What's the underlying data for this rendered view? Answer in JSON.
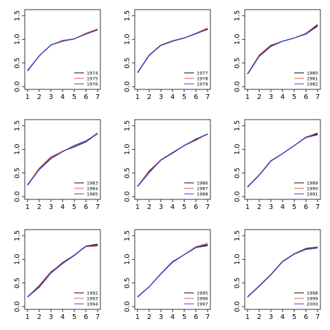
{
  "colors": {
    "black": "#000000",
    "red": "#d95f3b",
    "blue": "#2b3fd6"
  },
  "chart_data": [
    {
      "type": "line",
      "x": [
        1,
        2,
        3,
        4,
        5,
        6,
        7
      ],
      "ylim": [
        0,
        1.6
      ],
      "series": [
        {
          "name": "1974",
          "color": "#000000",
          "values": [
            0.34,
            0.65,
            0.88,
            0.97,
            1.01,
            1.12,
            1.21
          ]
        },
        {
          "name": "1975",
          "color": "#d95f3b",
          "values": [
            0.33,
            0.65,
            0.88,
            0.98,
            1.01,
            1.13,
            1.22
          ]
        },
        {
          "name": "1976",
          "color": "#2b3fd6",
          "values": [
            0.33,
            0.65,
            0.88,
            0.96,
            1.01,
            1.11,
            1.2
          ]
        }
      ]
    },
    {
      "type": "line",
      "x": [
        1,
        2,
        3,
        4,
        5,
        6,
        7
      ],
      "ylim": [
        0,
        1.6
      ],
      "series": [
        {
          "name": "1977",
          "color": "#000000",
          "values": [
            0.3,
            0.67,
            0.88,
            0.97,
            1.03,
            1.12,
            1.22
          ]
        },
        {
          "name": "1978",
          "color": "#d95f3b",
          "values": [
            0.3,
            0.67,
            0.88,
            0.97,
            1.03,
            1.13,
            1.24
          ]
        },
        {
          "name": "1979",
          "color": "#2b3fd6",
          "values": [
            0.29,
            0.66,
            0.87,
            0.96,
            1.03,
            1.12,
            1.21
          ]
        }
      ]
    },
    {
      "type": "line",
      "x": [
        1,
        2,
        3,
        4,
        5,
        6,
        7
      ],
      "ylim": [
        0,
        1.6
      ],
      "series": [
        {
          "name": "1980",
          "color": "#000000",
          "values": [
            0.27,
            0.66,
            0.86,
            0.96,
            1.03,
            1.12,
            1.3
          ]
        },
        {
          "name": "1981",
          "color": "#d95f3b",
          "values": [
            0.27,
            0.67,
            0.88,
            0.96,
            1.03,
            1.13,
            1.32
          ]
        },
        {
          "name": "1982",
          "color": "#2b3fd6",
          "values": [
            0.26,
            0.64,
            0.85,
            0.96,
            1.03,
            1.11,
            1.28
          ]
        }
      ]
    },
    {
      "type": "line",
      "x": [
        1,
        2,
        3,
        4,
        5,
        6,
        7
      ],
      "ylim": [
        0,
        1.6
      ],
      "series": [
        {
          "name": "1983",
          "color": "#000000",
          "values": [
            0.25,
            0.59,
            0.83,
            0.96,
            1.05,
            1.16,
            1.34
          ]
        },
        {
          "name": "1984",
          "color": "#d95f3b",
          "values": [
            0.25,
            0.6,
            0.84,
            0.96,
            1.06,
            1.17,
            1.35
          ]
        },
        {
          "name": "1985",
          "color": "#2b3fd6",
          "values": [
            0.24,
            0.57,
            0.8,
            0.95,
            1.08,
            1.18,
            1.33
          ]
        }
      ]
    },
    {
      "type": "line",
      "x": [
        1,
        2,
        3,
        4,
        5,
        6,
        7
      ],
      "ylim": [
        0,
        1.6
      ],
      "series": [
        {
          "name": "1986",
          "color": "#000000",
          "values": [
            0.22,
            0.53,
            0.78,
            0.93,
            1.08,
            1.21,
            1.33
          ]
        },
        {
          "name": "1987",
          "color": "#d95f3b",
          "values": [
            0.22,
            0.55,
            0.78,
            0.92,
            1.08,
            1.19,
            1.33
          ]
        },
        {
          "name": "1988",
          "color": "#2b3fd6",
          "values": [
            0.21,
            0.51,
            0.77,
            0.92,
            1.08,
            1.22,
            1.32
          ]
        }
      ]
    },
    {
      "type": "line",
      "x": [
        1,
        2,
        3,
        4,
        5,
        6,
        7
      ],
      "ylim": [
        0,
        1.6
      ],
      "series": [
        {
          "name": "1989",
          "color": "#000000",
          "values": [
            0.21,
            0.46,
            0.76,
            0.91,
            1.08,
            1.26,
            1.33
          ]
        },
        {
          "name": "1990",
          "color": "#d95f3b",
          "values": [
            0.21,
            0.46,
            0.76,
            0.91,
            1.08,
            1.26,
            1.35
          ]
        },
        {
          "name": "1991",
          "color": "#2b3fd6",
          "values": [
            0.2,
            0.45,
            0.75,
            0.91,
            1.08,
            1.25,
            1.31
          ]
        }
      ]
    },
    {
      "type": "line",
      "x": [
        1,
        2,
        3,
        4,
        5,
        6,
        7
      ],
      "ylim": [
        0,
        1.6
      ],
      "series": [
        {
          "name": "1992",
          "color": "#000000",
          "values": [
            0.21,
            0.42,
            0.73,
            0.93,
            1.09,
            1.28,
            1.32
          ]
        },
        {
          "name": "1993",
          "color": "#d95f3b",
          "values": [
            0.21,
            0.45,
            0.74,
            0.92,
            1.09,
            1.27,
            1.28
          ]
        },
        {
          "name": "1994",
          "color": "#2b3fd6",
          "values": [
            0.2,
            0.41,
            0.71,
            0.91,
            1.08,
            1.28,
            1.3
          ]
        }
      ]
    },
    {
      "type": "line",
      "x": [
        1,
        2,
        3,
        4,
        5,
        6,
        7
      ],
      "ylim": [
        0,
        1.6
      ],
      "series": [
        {
          "name": "1995",
          "color": "#000000",
          "values": [
            0.21,
            0.42,
            0.7,
            0.95,
            1.1,
            1.25,
            1.31
          ]
        },
        {
          "name": "1996",
          "color": "#d95f3b",
          "values": [
            0.21,
            0.42,
            0.7,
            0.94,
            1.1,
            1.27,
            1.34
          ]
        },
        {
          "name": "1997",
          "color": "#2b3fd6",
          "values": [
            0.2,
            0.42,
            0.69,
            0.94,
            1.1,
            1.25,
            1.29
          ]
        }
      ]
    },
    {
      "type": "line",
      "x": [
        1,
        2,
        3,
        4,
        5,
        6,
        7
      ],
      "ylim": [
        0,
        1.6
      ],
      "series": [
        {
          "name": "1998",
          "color": "#000000",
          "values": [
            0.21,
            0.44,
            0.68,
            0.96,
            1.12,
            1.23,
            1.26
          ]
        },
        {
          "name": "1999",
          "color": "#d95f3b",
          "values": [
            0.21,
            0.44,
            0.68,
            0.96,
            1.12,
            1.22,
            1.25
          ]
        },
        {
          "name": "2000",
          "color": "#2b3fd6",
          "values": [
            0.2,
            0.43,
            0.67,
            0.95,
            1.11,
            1.21,
            1.24
          ]
        }
      ]
    }
  ]
}
